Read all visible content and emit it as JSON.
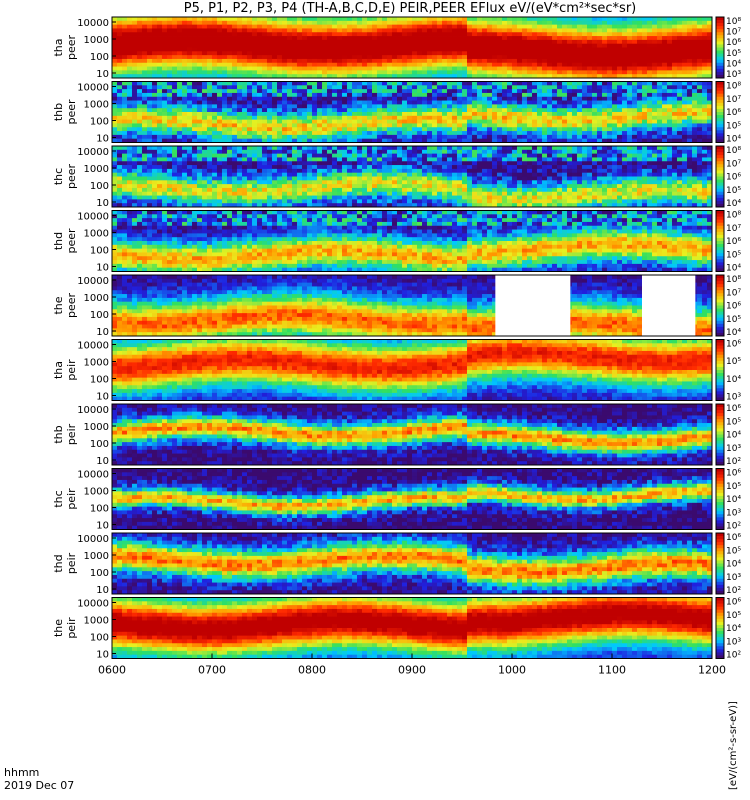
{
  "title": "P5, P1, P2, P3, P4 (TH-A,B,C,D,E) PEIR,PEER EFlux eV/(eV*cm²*sec*sr)",
  "footer": {
    "time_label": "hhmm",
    "date_label": "2019 Dec 07"
  },
  "units_label": "[eV/(cm²-s-sr-eV)]",
  "colors": {
    "frame": "#000000",
    "background": "#ffffff"
  },
  "chart_data": {
    "type": "heatmap",
    "x_ticks": [
      "0600",
      "0700",
      "0800",
      "0900",
      "1000",
      "1100",
      "1200"
    ],
    "xlim": [
      "0600",
      "1200"
    ],
    "x_unit": "hhmm",
    "y_scale": "log",
    "colorbar_scale": "log",
    "panels": [
      {
        "label": "tha peer",
        "y_ticks": [
          "10000",
          "1000",
          "100",
          "10"
        ],
        "colorbar_ticks": [
          "10⁸",
          "10⁷",
          "10⁶",
          "10⁵",
          "10⁴",
          "10³"
        ],
        "gaps": []
      },
      {
        "label": "thb peer",
        "y_ticks": [
          "10000",
          "1000",
          "100",
          "10"
        ],
        "colorbar_ticks": [
          "10⁸",
          "10⁷",
          "10⁶",
          "10⁵",
          "10⁴"
        ],
        "gaps": []
      },
      {
        "label": "thc peer",
        "y_ticks": [
          "10000",
          "1000",
          "100",
          "10"
        ],
        "colorbar_ticks": [
          "10⁸",
          "10⁷",
          "10⁶",
          "10⁵",
          "10⁴"
        ],
        "gaps": []
      },
      {
        "label": "thd peer",
        "y_ticks": [
          "10000",
          "1000",
          "100",
          "10"
        ],
        "colorbar_ticks": [
          "10⁸",
          "10⁷",
          "10⁶",
          "10⁵",
          "10⁴"
        ],
        "gaps": []
      },
      {
        "label": "the peer",
        "y_ticks": [
          "10000",
          "1000",
          "100",
          "10"
        ],
        "colorbar_ticks": [
          "10⁸",
          "10⁷",
          "10⁶",
          "10⁵",
          "10⁴"
        ],
        "gaps": [
          [
            "0950",
            "1035"
          ],
          [
            "1118",
            "1150"
          ]
        ]
      },
      {
        "label": "tha peir",
        "y_ticks": [
          "10000",
          "1000",
          "100",
          "10"
        ],
        "colorbar_ticks": [
          "10⁶",
          "10⁵",
          "10⁴",
          "10³"
        ],
        "gaps": []
      },
      {
        "label": "thb peir",
        "y_ticks": [
          "10000",
          "1000",
          "100",
          "10"
        ],
        "colorbar_ticks": [
          "10⁶",
          "10⁵",
          "10⁴",
          "10³",
          "10²"
        ],
        "gaps": []
      },
      {
        "label": "thc peir",
        "y_ticks": [
          "10000",
          "1000",
          "100",
          "10"
        ],
        "colorbar_ticks": [
          "10⁶",
          "10⁵",
          "10⁴",
          "10³",
          "10²"
        ],
        "gaps": []
      },
      {
        "label": "thd peir",
        "y_ticks": [
          "10000",
          "1000",
          "100",
          "10"
        ],
        "colorbar_ticks": [
          "10⁶",
          "10⁵",
          "10⁴",
          "10³",
          "10²"
        ],
        "gaps": []
      },
      {
        "label": "the peir",
        "y_ticks": [
          "10000",
          "1000",
          "100",
          "10"
        ],
        "colorbar_ticks": [
          "10⁶",
          "10⁵",
          "10⁴",
          "10³",
          "10²"
        ],
        "gaps": []
      }
    ]
  }
}
